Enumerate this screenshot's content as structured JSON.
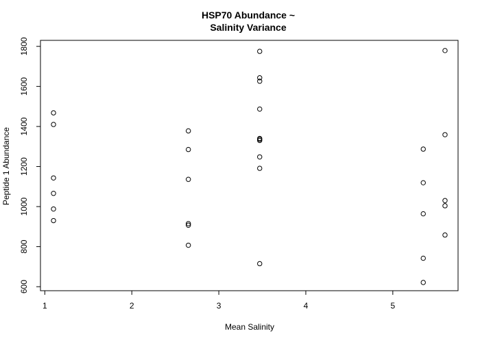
{
  "chart_data": {
    "type": "scatter",
    "title_lines": [
      "HSP70 Abundance ~",
      "Salinity Variance"
    ],
    "xlabel": "Mean Salinity",
    "ylabel": "Peptide 1 Abundance",
    "xlim": [
      0.95,
      5.75
    ],
    "ylim": [
      580,
      1830
    ],
    "x_ticks": [
      1,
      2,
      3,
      4,
      5
    ],
    "y_ticks": [
      600,
      800,
      1000,
      1200,
      1400,
      1600,
      1800
    ],
    "grid": false,
    "legend": "none",
    "x": [
      1.1,
      1.1,
      1.1,
      1.1,
      1.1,
      1.1,
      2.65,
      2.65,
      2.65,
      2.65,
      2.65,
      2.65,
      3.47,
      3.47,
      3.47,
      3.47,
      3.47,
      3.47,
      3.47,
      3.47,
      3.47,
      3.47,
      5.35,
      5.35,
      5.35,
      5.35,
      5.35,
      5.6,
      5.6,
      5.6,
      5.6,
      5.6
    ],
    "y": [
      1468,
      1410,
      1143,
      1066,
      988,
      930,
      1378,
      1285,
      1136,
      915,
      907,
      807,
      1775,
      1643,
      1626,
      1487,
      1336,
      1330,
      1248,
      1191,
      715,
      1340,
      1287,
      1119,
      964,
      742,
      621,
      1779,
      1359,
      1030,
      1004,
      858
    ]
  }
}
